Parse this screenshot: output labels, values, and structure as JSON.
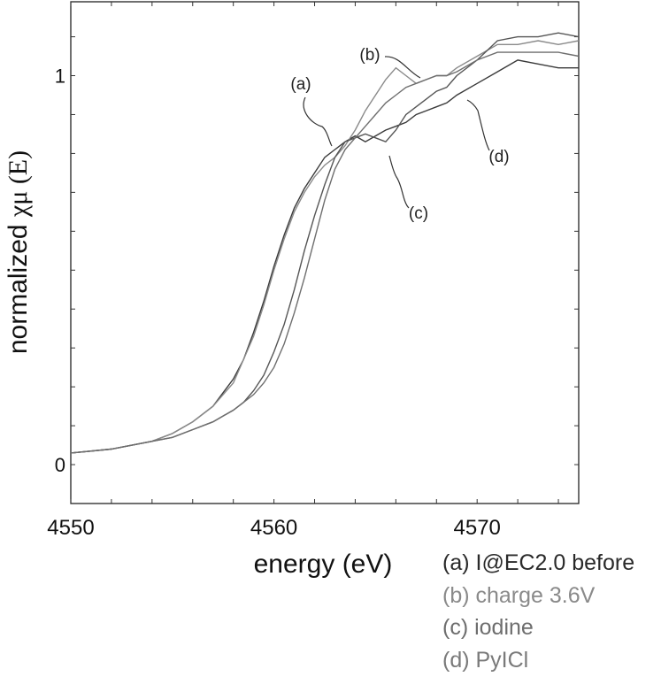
{
  "chart_data": {
    "type": "line",
    "xlabel": "energy (eV)",
    "ylabel_text": "normalized ",
    "ylabel_symbol": "χμ (E)",
    "xlim": [
      4550,
      4575
    ],
    "ylim": [
      -0.1,
      1.19
    ],
    "xticks": [
      4550,
      4560,
      4570
    ],
    "yticks": [
      0,
      1
    ],
    "grid": false,
    "series": [
      {
        "name": "(a) I@EC2.0 before",
        "curve_label": "(a)",
        "color": "#3a3a3a",
        "x": [
          4550,
          4552,
          4554,
          4555,
          4556,
          4557,
          4558,
          4558.5,
          4559,
          4559.5,
          4560,
          4560.5,
          4561,
          4561.5,
          4562,
          4562.5,
          4563,
          4563.5,
          4564,
          4564.5,
          4565,
          4565.5,
          4566,
          4566.5,
          4567,
          4567.5,
          4568,
          4568.5,
          4569,
          4570,
          4571,
          4572,
          4573,
          4574,
          4575
        ],
        "y": [
          0.03,
          0.04,
          0.06,
          0.08,
          0.11,
          0.15,
          0.22,
          0.27,
          0.34,
          0.42,
          0.51,
          0.59,
          0.66,
          0.71,
          0.75,
          0.79,
          0.81,
          0.83,
          0.845,
          0.83,
          0.845,
          0.86,
          0.87,
          0.88,
          0.9,
          0.91,
          0.92,
          0.93,
          0.95,
          0.98,
          1.01,
          1.04,
          1.03,
          1.02,
          1.02
        ]
      },
      {
        "name": "(b) charge 3.6V",
        "curve_label": "(b)",
        "color": "#8a8a8a",
        "x": [
          4550,
          4552,
          4554,
          4555,
          4556,
          4557,
          4558,
          4558.5,
          4559,
          4559.5,
          4560,
          4560.5,
          4561,
          4561.5,
          4562,
          4562.5,
          4563,
          4563.5,
          4564,
          4564.5,
          4565,
          4565.5,
          4566,
          4566.5,
          4567,
          4567.5,
          4568,
          4568.5,
          4569,
          4570,
          4571,
          4572,
          4573,
          4574,
          4575
        ],
        "y": [
          0.03,
          0.04,
          0.06,
          0.08,
          0.11,
          0.15,
          0.21,
          0.27,
          0.33,
          0.41,
          0.5,
          0.58,
          0.65,
          0.7,
          0.74,
          0.77,
          0.79,
          0.82,
          0.86,
          0.91,
          0.95,
          0.99,
          1.02,
          1.0,
          0.98,
          0.99,
          1.0,
          1.0,
          1.02,
          1.05,
          1.08,
          1.08,
          1.09,
          1.08,
          1.09
        ]
      },
      {
        "name": "(c) iodine",
        "curve_label": "(c)",
        "color": "#555555",
        "x": [
          4550,
          4552,
          4554,
          4555,
          4556,
          4557,
          4558,
          4558.5,
          4559,
          4559.5,
          4560,
          4560.5,
          4561,
          4561.5,
          4562,
          4562.5,
          4563,
          4563.5,
          4564,
          4564.5,
          4565,
          4565.5,
          4566,
          4566.5,
          4567,
          4567.5,
          4568,
          4568.5,
          4569,
          4570,
          4571,
          4572,
          4573,
          4574,
          4575
        ],
        "y": [
          0.03,
          0.04,
          0.06,
          0.07,
          0.09,
          0.11,
          0.14,
          0.16,
          0.19,
          0.23,
          0.29,
          0.36,
          0.45,
          0.55,
          0.64,
          0.72,
          0.79,
          0.83,
          0.84,
          0.85,
          0.84,
          0.83,
          0.86,
          0.9,
          0.92,
          0.94,
          0.96,
          0.97,
          1.0,
          1.04,
          1.09,
          1.1,
          1.1,
          1.11,
          1.1
        ]
      },
      {
        "name": "(d) PyICl",
        "curve_label": "(d)",
        "color": "#6e6e6e",
        "x": [
          4550,
          4552,
          4554,
          4555,
          4556,
          4557,
          4558,
          4558.5,
          4559,
          4559.5,
          4560,
          4560.5,
          4561,
          4561.5,
          4562,
          4562.5,
          4563,
          4563.5,
          4564,
          4564.5,
          4565,
          4565.5,
          4566,
          4566.5,
          4567,
          4567.5,
          4568,
          4568.5,
          4569,
          4570,
          4571,
          4572,
          4573,
          4574,
          4575
        ],
        "y": [
          0.03,
          0.04,
          0.06,
          0.07,
          0.09,
          0.11,
          0.14,
          0.16,
          0.18,
          0.21,
          0.25,
          0.31,
          0.39,
          0.48,
          0.58,
          0.68,
          0.76,
          0.81,
          0.84,
          0.87,
          0.9,
          0.93,
          0.95,
          0.97,
          0.98,
          0.99,
          1.0,
          1.0,
          1.01,
          1.04,
          1.06,
          1.06,
          1.06,
          1.06,
          1.05
        ]
      }
    ]
  },
  "legend": {
    "items": [
      {
        "label": "(a) I@EC2.0 before",
        "color": "#2a2a2a"
      },
      {
        "label": "(b) charge 3.6V",
        "color": "#8a8a8a"
      },
      {
        "label": "(c) iodine",
        "color": "#6e6e6e"
      },
      {
        "label": "(d) PyICl",
        "color": "#7a7a7a"
      }
    ]
  }
}
